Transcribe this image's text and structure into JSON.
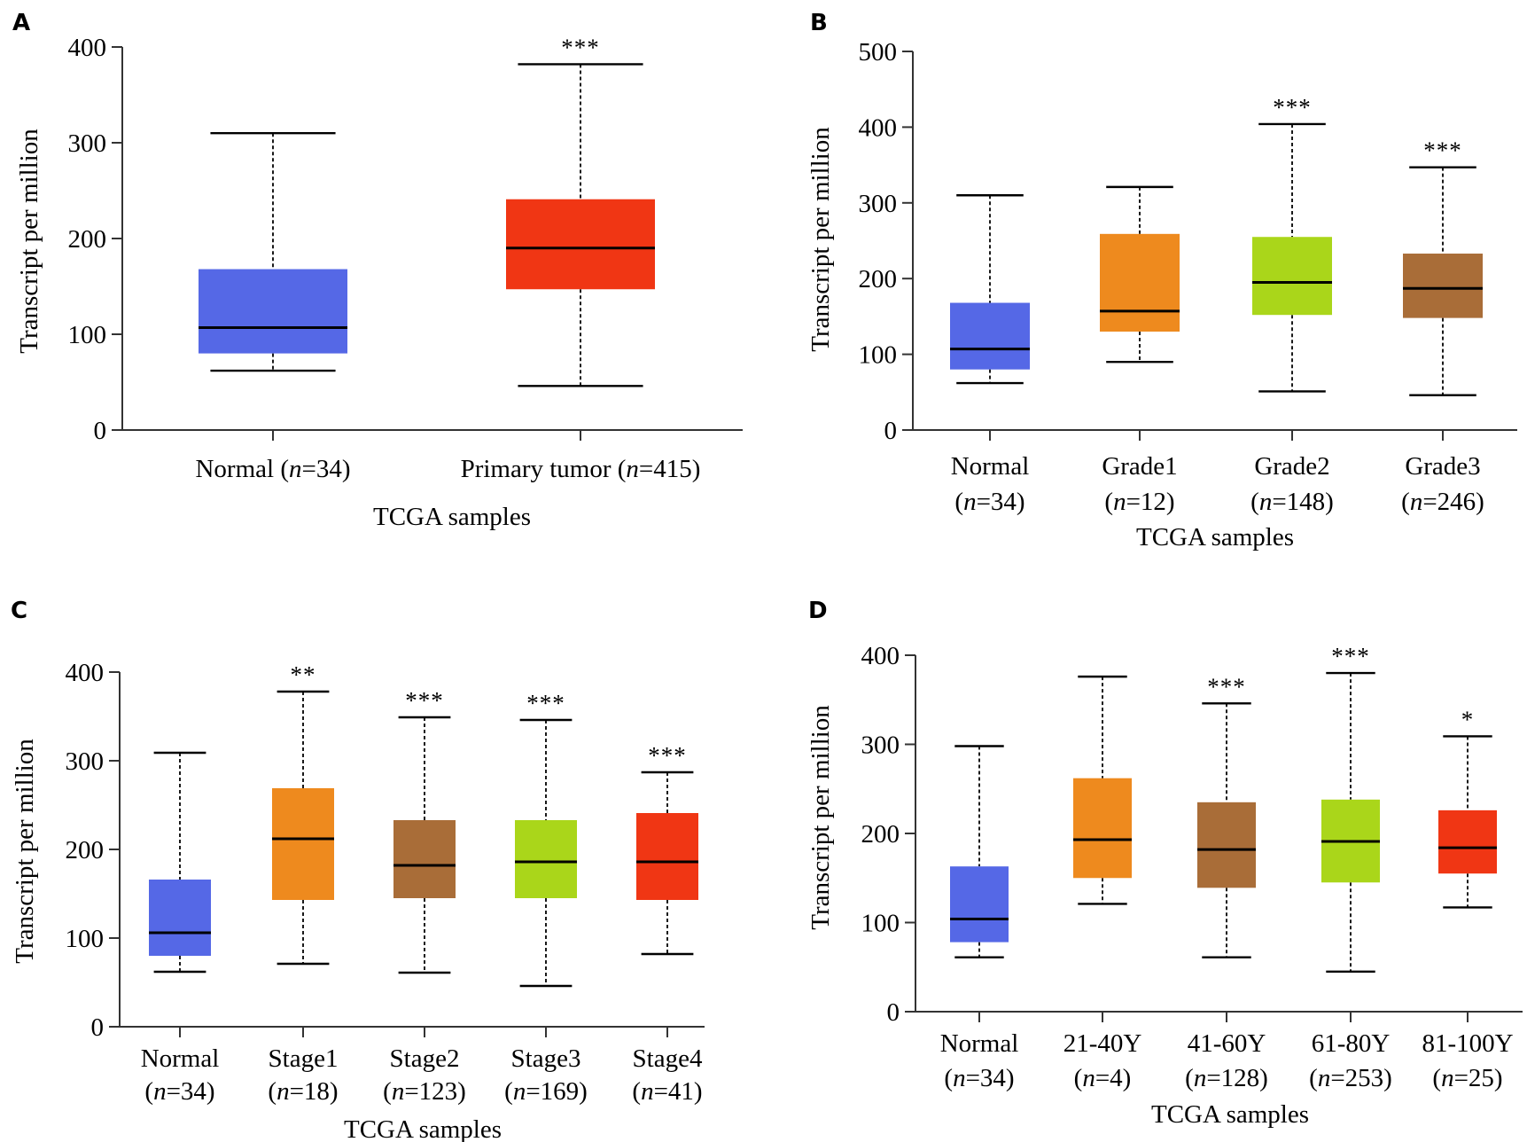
{
  "chart_data": [
    {
      "panel": "A",
      "type": "box",
      "ylabel": "Transcript per million",
      "xlabel": "TCGA samples",
      "ylim": [
        0,
        400
      ],
      "yticks": [
        0,
        100,
        200,
        300,
        400
      ],
      "boxes": [
        {
          "label": [
            "Normal (",
            "n",
            "=34)"
          ],
          "color": "#5568e6",
          "min": 62,
          "q1": 80,
          "median": 107,
          "q3": 168,
          "max": 310,
          "sig": ""
        },
        {
          "label": [
            "Primary tumor (",
            "n",
            "=415)"
          ],
          "color": "#f03614",
          "min": 46,
          "q1": 147,
          "median": 190,
          "q3": 241,
          "max": 382,
          "sig": "***"
        }
      ]
    },
    {
      "panel": "B",
      "type": "box",
      "ylabel": "Transcript per million",
      "xlabel": "TCGA samples",
      "ylim": [
        0,
        500
      ],
      "yticks": [
        0,
        100,
        200,
        300,
        400,
        500
      ],
      "boxes": [
        {
          "label": [
            "Normal",
            "(",
            "n",
            "=34)"
          ],
          "color": "#5568e6",
          "min": 62,
          "q1": 80,
          "median": 107,
          "q3": 168,
          "max": 310,
          "sig": ""
        },
        {
          "label": [
            "Grade1",
            "(",
            "n",
            "=12)"
          ],
          "color": "#ee8a1e",
          "min": 90,
          "q1": 130,
          "median": 157,
          "q3": 259,
          "max": 321,
          "sig": ""
        },
        {
          "label": [
            "Grade2",
            "(",
            "n",
            "=148)"
          ],
          "color": "#aad61a",
          "min": 51,
          "q1": 152,
          "median": 195,
          "q3": 255,
          "max": 404,
          "sig": "***"
        },
        {
          "label": [
            "Grade3",
            "(",
            "n",
            "=246)"
          ],
          "color": "#a96d38",
          "min": 46,
          "q1": 148,
          "median": 187,
          "q3": 233,
          "max": 347,
          "sig": "***"
        }
      ]
    },
    {
      "panel": "C",
      "type": "box",
      "ylabel": "Transcript per million",
      "xlabel": "TCGA samples",
      "ylim": [
        0,
        400
      ],
      "yticks": [
        0,
        100,
        200,
        300,
        400
      ],
      "boxes": [
        {
          "label": [
            "Normal",
            "(",
            "n",
            "=34)"
          ],
          "color": "#5568e6",
          "min": 62,
          "q1": 80,
          "median": 106,
          "q3": 166,
          "max": 309,
          "sig": ""
        },
        {
          "label": [
            "Stage1",
            "(",
            "n",
            "=18)"
          ],
          "color": "#ee8a1e",
          "min": 71,
          "q1": 143,
          "median": 212,
          "q3": 269,
          "max": 378,
          "sig": "**"
        },
        {
          "label": [
            "Stage2",
            "(",
            "n",
            "=123)"
          ],
          "color": "#a96d38",
          "min": 61,
          "q1": 145,
          "median": 182,
          "q3": 233,
          "max": 349,
          "sig": "***"
        },
        {
          "label": [
            "Stage3",
            "(",
            "n",
            "=169)"
          ],
          "color": "#aad61a",
          "min": 46,
          "q1": 145,
          "median": 186,
          "q3": 233,
          "max": 346,
          "sig": "***"
        },
        {
          "label": [
            "Stage4",
            "(",
            "n",
            "=41)"
          ],
          "color": "#f03614",
          "min": 82,
          "q1": 143,
          "median": 186,
          "q3": 241,
          "max": 287,
          "sig": "***"
        }
      ]
    },
    {
      "panel": "D",
      "type": "box",
      "ylabel": "Transcript per million",
      "xlabel": "TCGA samples",
      "ylim": [
        0,
        400
      ],
      "yticks": [
        0,
        100,
        200,
        300,
        400
      ],
      "boxes": [
        {
          "label": [
            "Normal",
            "(",
            "n",
            "=34)"
          ],
          "color": "#5568e6",
          "min": 61,
          "q1": 78,
          "median": 104,
          "q3": 163,
          "max": 298,
          "sig": ""
        },
        {
          "label": [
            "21-40Y",
            "(",
            "n",
            "=4)"
          ],
          "color": "#ee8a1e",
          "min": 121,
          "q1": 150,
          "median": 193,
          "q3": 262,
          "max": 376,
          "sig": ""
        },
        {
          "label": [
            "41-60Y",
            "(",
            "n",
            "=128)"
          ],
          "color": "#a96d38",
          "min": 61,
          "q1": 139,
          "median": 182,
          "q3": 235,
          "max": 346,
          "sig": "***"
        },
        {
          "label": [
            "61-80Y",
            "(",
            "n",
            "=253)"
          ],
          "color": "#aad61a",
          "min": 45,
          "q1": 145,
          "median": 191,
          "q3": 238,
          "max": 380,
          "sig": "***"
        },
        {
          "label": [
            "81-100Y",
            "(",
            "n",
            "=25)"
          ],
          "color": "#f03614",
          "min": 117,
          "q1": 155,
          "median": 184,
          "q3": 226,
          "max": 309,
          "sig": "*"
        }
      ]
    }
  ]
}
